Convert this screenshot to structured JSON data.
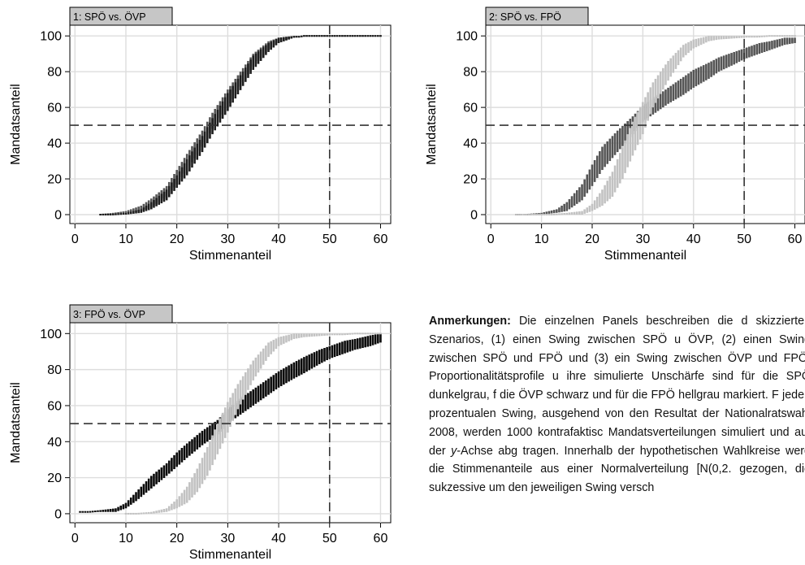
{
  "chart_data": [
    {
      "type": "scatter",
      "panel_label": "1: SPÖ vs. ÖVP",
      "xlabel": "Stimmenanteil",
      "ylabel": "Mandatsanteil",
      "xlim": [
        -1,
        62
      ],
      "ylim": [
        -5,
        106
      ],
      "xticks": [
        "0",
        "10",
        "20",
        "30",
        "40",
        "50",
        "60"
      ],
      "yticks": [
        "0",
        "20",
        "40",
        "60",
        "80",
        "100"
      ],
      "reference_lines": {
        "horizontal_y": 50,
        "vertical_x": 50
      },
      "series": [
        {
          "color": "#555555",
          "x": [
            5,
            10,
            13,
            15,
            18,
            20,
            22,
            25,
            27,
            30,
            33,
            35,
            38,
            40,
            43,
            45,
            50,
            55,
            60
          ],
          "y_low": [
            0,
            1,
            2,
            4,
            10,
            17,
            25,
            38,
            48,
            60,
            74,
            83,
            92,
            96,
            99,
            100,
            100,
            100,
            100
          ],
          "y_high": [
            0,
            2,
            5,
            9,
            16,
            25,
            34,
            47,
            57,
            70,
            82,
            90,
            97,
            99,
            100,
            100,
            100,
            100,
            100
          ]
        },
        {
          "color": "#1e1e1e",
          "x": [
            5,
            10,
            13,
            15,
            18,
            20,
            22,
            25,
            27,
            30,
            33,
            35,
            38,
            40,
            43,
            45,
            50,
            55,
            60
          ],
          "y_low": [
            0,
            0,
            1,
            3,
            8,
            15,
            22,
            35,
            45,
            58,
            72,
            81,
            91,
            96,
            99,
            100,
            100,
            100,
            100
          ],
          "y_high": [
            0,
            1,
            3,
            7,
            14,
            22,
            31,
            44,
            54,
            68,
            80,
            89,
            96,
            99,
            100,
            100,
            100,
            100,
            100
          ]
        }
      ]
    },
    {
      "type": "scatter",
      "panel_label": "2: SPÖ vs. FPÖ",
      "xlabel": "Stimmenanteil",
      "ylabel": "Mandatsanteil",
      "xlim": [
        -1,
        62
      ],
      "ylim": [
        -5,
        106
      ],
      "xticks": [
        "0",
        "10",
        "20",
        "30",
        "40",
        "50",
        "60"
      ],
      "yticks": [
        "0",
        "20",
        "40",
        "60",
        "80",
        "100"
      ],
      "reference_lines": {
        "horizontal_y": 50,
        "vertical_x": 50
      },
      "series": [
        {
          "color": "#555555",
          "x": [
            5,
            10,
            13,
            15,
            18,
            20,
            22,
            25,
            28,
            30,
            33,
            35,
            38,
            40,
            43,
            45,
            48,
            50,
            53,
            55,
            58,
            60
          ],
          "y_low": [
            0,
            0,
            1,
            2,
            8,
            16,
            25,
            35,
            45,
            52,
            58,
            62,
            67,
            71,
            76,
            80,
            84,
            87,
            90,
            92,
            95,
            96
          ],
          "y_high": [
            0,
            1,
            3,
            7,
            17,
            28,
            38,
            47,
            55,
            61,
            67,
            71,
            77,
            81,
            85,
            88,
            91,
            93,
            96,
            97,
            99,
            99
          ]
        },
        {
          "color": "#c2c2c2",
          "x": [
            5,
            10,
            15,
            18,
            20,
            22,
            24,
            26,
            28,
            30,
            32,
            35,
            38,
            40,
            43,
            45,
            50,
            55,
            60
          ],
          "y_low": [
            0,
            0,
            0,
            0,
            2,
            5,
            10,
            20,
            33,
            45,
            60,
            75,
            88,
            93,
            97,
            98,
            99,
            100,
            100
          ],
          "y_high": [
            0,
            0,
            1,
            2,
            6,
            14,
            24,
            38,
            52,
            63,
            74,
            86,
            95,
            98,
            100,
            100,
            100,
            100,
            100
          ]
        }
      ]
    },
    {
      "type": "scatter",
      "panel_label": "3: FPÖ vs. ÖVP",
      "xlabel": "Stimmenanteil",
      "ylabel": "Mandatsanteil",
      "xlim": [
        -1,
        62
      ],
      "ylim": [
        -5,
        106
      ],
      "xticks": [
        "0",
        "10",
        "20",
        "30",
        "40",
        "50",
        "60"
      ],
      "yticks": [
        "0",
        "20",
        "40",
        "60",
        "80",
        "100"
      ],
      "reference_lines": {
        "horizontal_y": 50,
        "vertical_x": 50
      },
      "series": [
        {
          "color": "#0a0a0a",
          "x": [
            1,
            5,
            8,
            10,
            12,
            15,
            18,
            20,
            22,
            25,
            28,
            30,
            33,
            35,
            38,
            40,
            43,
            45,
            48,
            50,
            53,
            55,
            58,
            60
          ],
          "y_low": [
            1,
            1,
            1,
            3,
            7,
            14,
            21,
            26,
            31,
            38,
            44,
            50,
            56,
            60,
            66,
            70,
            75,
            78,
            83,
            86,
            89,
            91,
            93,
            95
          ],
          "y_high": [
            1,
            2,
            3,
            6,
            12,
            21,
            28,
            34,
            39,
            46,
            52,
            58,
            65,
            69,
            75,
            79,
            84,
            87,
            91,
            93,
            96,
            97,
            99,
            100
          ]
        },
        {
          "color": "#c2c2c2",
          "x": [
            10,
            15,
            18,
            20,
            22,
            24,
            26,
            28,
            30,
            32,
            35,
            38,
            40,
            43,
            45,
            50,
            55,
            60
          ],
          "y_low": [
            0,
            0,
            1,
            3,
            6,
            12,
            21,
            33,
            45,
            58,
            74,
            87,
            93,
            97,
            98,
            99,
            100,
            100
          ],
          "y_high": [
            0,
            1,
            3,
            8,
            15,
            25,
            37,
            50,
            62,
            72,
            85,
            95,
            98,
            100,
            100,
            100,
            100,
            100
          ]
        }
      ]
    }
  ],
  "notes": {
    "heading": "Anmerkungen:",
    "text_1": "Die einzelnen Panels beschreiben die d skizzierten Szenarios, (1) einen Swing zwischen SPÖ u ÖVP, (2) einen Swing zwischen SPÖ und FPÖ und (3) ein Swing zwischen ÖVP und FPÖ. Proportionalitätsprofile u ihre simulierte Unschärfe sind für die SPÖ dunkelgrau, f die ÖVP schwarz und für die FPÖ hellgrau markiert. F jeden prozentualen Swing, ausgehend von den Resultat der Nationalratswahl 2008, werden 1000 kontrafaktisc Mandatsverteilungen simuliert und auf der ",
    "axis_italic": "y",
    "text_2": "-Achse abg tragen. Innerhalb der hypothetischen Wahlkreise werd die Stimmenanteile aus einer Normalverteilung [N(0,2. gezogen, die sukzessive um den jeweiligen Swing versch"
  }
}
